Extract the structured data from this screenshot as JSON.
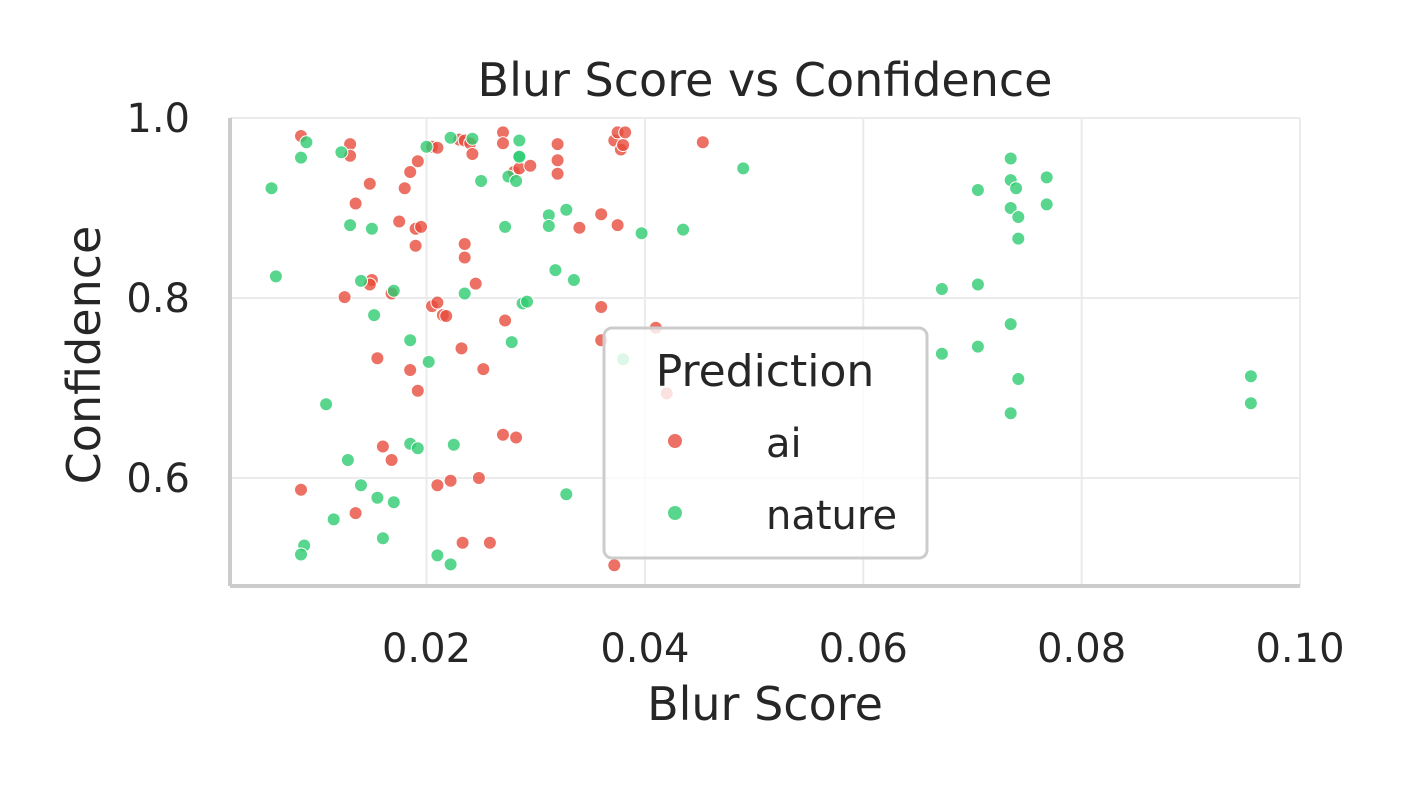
{
  "colors": {
    "ai": "#e74c3c",
    "nature": "#2ecc71",
    "grid": "#ebebeb",
    "spine": "#cccccc",
    "text": "#262626"
  },
  "chart_data": {
    "type": "scatter",
    "title": "Blur Score vs Confidence",
    "xlabel": "Blur Score",
    "ylabel": "Confidence",
    "xlim": [
      0.002,
      0.1
    ],
    "ylim": [
      0.48,
      1.0
    ],
    "xticks": [
      0.02,
      0.04,
      0.06,
      0.08,
      0.1
    ],
    "xtick_labels": [
      "0.02",
      "0.04",
      "0.06",
      "0.08",
      "0.10"
    ],
    "yticks": [
      0.6,
      0.8,
      1.0
    ],
    "ytick_labels": [
      "0.6",
      "0.8",
      "1.0"
    ],
    "grid": true,
    "legend": {
      "title": "Prediction",
      "placement": "center"
    },
    "series": [
      {
        "name": "ai",
        "color": "#e74c3c",
        "points": [
          [
            0.0085,
            0.98
          ],
          [
            0.013,
            0.971
          ],
          [
            0.013,
            0.958
          ],
          [
            0.0148,
            0.927
          ],
          [
            0.018,
            0.922
          ],
          [
            0.0185,
            0.94
          ],
          [
            0.0192,
            0.952
          ],
          [
            0.0205,
            0.968
          ],
          [
            0.021,
            0.967
          ],
          [
            0.023,
            0.976
          ],
          [
            0.0235,
            0.975
          ],
          [
            0.024,
            0.972
          ],
          [
            0.0242,
            0.96
          ],
          [
            0.027,
            0.984
          ],
          [
            0.027,
            0.972
          ],
          [
            0.028,
            0.94
          ],
          [
            0.0285,
            0.944
          ],
          [
            0.0295,
            0.947
          ],
          [
            0.032,
            0.971
          ],
          [
            0.032,
            0.953
          ],
          [
            0.032,
            0.938
          ],
          [
            0.0372,
            0.975
          ],
          [
            0.0375,
            0.984
          ],
          [
            0.0378,
            0.965
          ],
          [
            0.038,
            0.97
          ],
          [
            0.0382,
            0.984
          ],
          [
            0.0453,
            0.973
          ],
          [
            0.0135,
            0.905
          ],
          [
            0.0175,
            0.885
          ],
          [
            0.019,
            0.877
          ],
          [
            0.0195,
            0.879
          ],
          [
            0.019,
            0.858
          ],
          [
            0.0235,
            0.86
          ],
          [
            0.0235,
            0.845
          ],
          [
            0.0245,
            0.816
          ],
          [
            0.015,
            0.82
          ],
          [
            0.0148,
            0.815
          ],
          [
            0.0125,
            0.801
          ],
          [
            0.0168,
            0.805
          ],
          [
            0.0205,
            0.791
          ],
          [
            0.021,
            0.795
          ],
          [
            0.0215,
            0.781
          ],
          [
            0.0218,
            0.78
          ],
          [
            0.0272,
            0.775
          ],
          [
            0.036,
            0.893
          ],
          [
            0.034,
            0.878
          ],
          [
            0.0375,
            0.881
          ],
          [
            0.036,
            0.79
          ],
          [
            0.036,
            0.753
          ],
          [
            0.041,
            0.767
          ],
          [
            0.0155,
            0.733
          ],
          [
            0.0185,
            0.72
          ],
          [
            0.0192,
            0.697
          ],
          [
            0.0232,
            0.744
          ],
          [
            0.0252,
            0.721
          ],
          [
            0.042,
            0.694
          ],
          [
            0.0085,
            0.587
          ],
          [
            0.0135,
            0.561
          ],
          [
            0.016,
            0.635
          ],
          [
            0.0168,
            0.62
          ],
          [
            0.021,
            0.592
          ],
          [
            0.0222,
            0.597
          ],
          [
            0.0248,
            0.6
          ],
          [
            0.027,
            0.648
          ],
          [
            0.0282,
            0.645
          ],
          [
            0.0233,
            0.528
          ],
          [
            0.0258,
            0.528
          ],
          [
            0.0372,
            0.503
          ]
        ]
      },
      {
        "name": "nature",
        "color": "#2ecc71",
        "points": [
          [
            0.0085,
            0.956
          ],
          [
            0.009,
            0.973
          ],
          [
            0.0058,
            0.922
          ],
          [
            0.0122,
            0.962
          ],
          [
            0.02,
            0.968
          ],
          [
            0.0222,
            0.978
          ],
          [
            0.0242,
            0.977
          ],
          [
            0.025,
            0.93
          ],
          [
            0.0275,
            0.935
          ],
          [
            0.0282,
            0.93
          ],
          [
            0.0285,
            0.975
          ],
          [
            0.0285,
            0.958
          ],
          [
            0.0285,
            0.957
          ],
          [
            0.049,
            0.944
          ],
          [
            0.013,
            0.881
          ],
          [
            0.015,
            0.877
          ],
          [
            0.0272,
            0.879
          ],
          [
            0.0312,
            0.892
          ],
          [
            0.0312,
            0.88
          ],
          [
            0.0328,
            0.898
          ],
          [
            0.0397,
            0.872
          ],
          [
            0.0435,
            0.876
          ],
          [
            0.0062,
            0.824
          ],
          [
            0.014,
            0.819
          ],
          [
            0.017,
            0.808
          ],
          [
            0.0152,
            0.781
          ],
          [
            0.0185,
            0.753
          ],
          [
            0.0202,
            0.729
          ],
          [
            0.0235,
            0.805
          ],
          [
            0.0288,
            0.794
          ],
          [
            0.0292,
            0.796
          ],
          [
            0.0278,
            0.751
          ],
          [
            0.0318,
            0.831
          ],
          [
            0.0335,
            0.82
          ],
          [
            0.038,
            0.732
          ],
          [
            0.0108,
            0.682
          ],
          [
            0.0128,
            0.62
          ],
          [
            0.014,
            0.592
          ],
          [
            0.0155,
            0.578
          ],
          [
            0.017,
            0.573
          ],
          [
            0.0185,
            0.638
          ],
          [
            0.0192,
            0.633
          ],
          [
            0.0225,
            0.637
          ],
          [
            0.016,
            0.533
          ],
          [
            0.0115,
            0.554
          ],
          [
            0.0088,
            0.525
          ],
          [
            0.0085,
            0.515
          ],
          [
            0.021,
            0.514
          ],
          [
            0.0222,
            0.504
          ],
          [
            0.0328,
            0.582
          ],
          [
            0.0735,
            0.955
          ],
          [
            0.0735,
            0.931
          ],
          [
            0.074,
            0.922
          ],
          [
            0.0735,
            0.9
          ],
          [
            0.0742,
            0.89
          ],
          [
            0.0768,
            0.934
          ],
          [
            0.0768,
            0.904
          ],
          [
            0.0705,
            0.92
          ],
          [
            0.0742,
            0.866
          ],
          [
            0.0672,
            0.81
          ],
          [
            0.0705,
            0.815
          ],
          [
            0.0672,
            0.738
          ],
          [
            0.0705,
            0.746
          ],
          [
            0.0735,
            0.771
          ],
          [
            0.0742,
            0.71
          ],
          [
            0.0735,
            0.672
          ],
          [
            0.0955,
            0.713
          ],
          [
            0.0955,
            0.683
          ]
        ]
      }
    ]
  }
}
